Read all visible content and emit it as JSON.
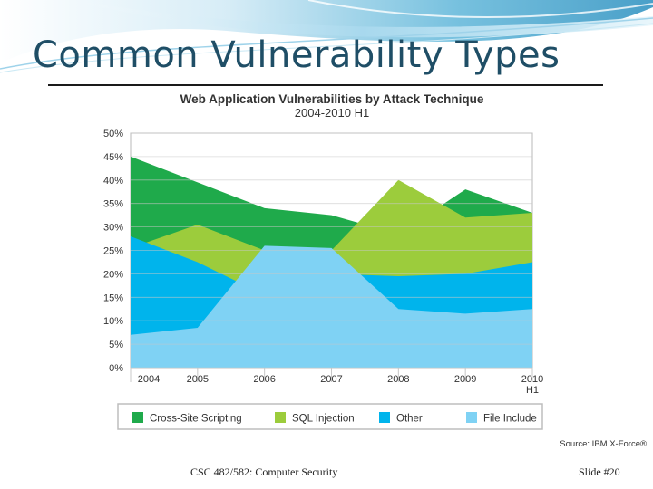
{
  "slide": {
    "title": "Common Vulnerability Types",
    "footer_course": "CSC 482/582: Computer Security",
    "footer_slide": "Slide #20"
  },
  "colors": {
    "xss": "#1faa4b",
    "sqli": "#9ccc3c",
    "other": "#00b4ec",
    "file_include": "#7fd2f4"
  },
  "chart_data": {
    "type": "area",
    "stacked": false,
    "title": "Web Application Vulnerabilities by Attack Technique",
    "subtitle": "2004-2010 H1",
    "categories": [
      "2004",
      "2005",
      "2006",
      "2007",
      "2008",
      "2009",
      "2010 H1"
    ],
    "ylim": [
      0,
      50
    ],
    "yticks": [
      "0%",
      "5%",
      "10%",
      "15%",
      "20%",
      "25%",
      "30%",
      "35%",
      "40%",
      "45%",
      "50%"
    ],
    "series": [
      {
        "name": "Cross-Site Scripting",
        "color": "#1faa4b",
        "values": [
          45,
          39.5,
          34,
          32.5,
          28.5,
          38,
          33
        ]
      },
      {
        "name": "SQL Injection",
        "color": "#9ccc3c",
        "values": [
          25.5,
          30.5,
          25,
          25,
          40,
          32,
          33
        ]
      },
      {
        "name": "Other",
        "color": "#00b4ec",
        "values": [
          28,
          22.5,
          15.5,
          20,
          19.5,
          20,
          22.5
        ]
      },
      {
        "name": "File Include",
        "color": "#7fd2f4",
        "values": [
          7,
          8.5,
          26,
          25.5,
          12.5,
          11.5,
          12.5
        ]
      }
    ],
    "legend_position": "bottom",
    "source": "Source: IBM X-Force®"
  }
}
